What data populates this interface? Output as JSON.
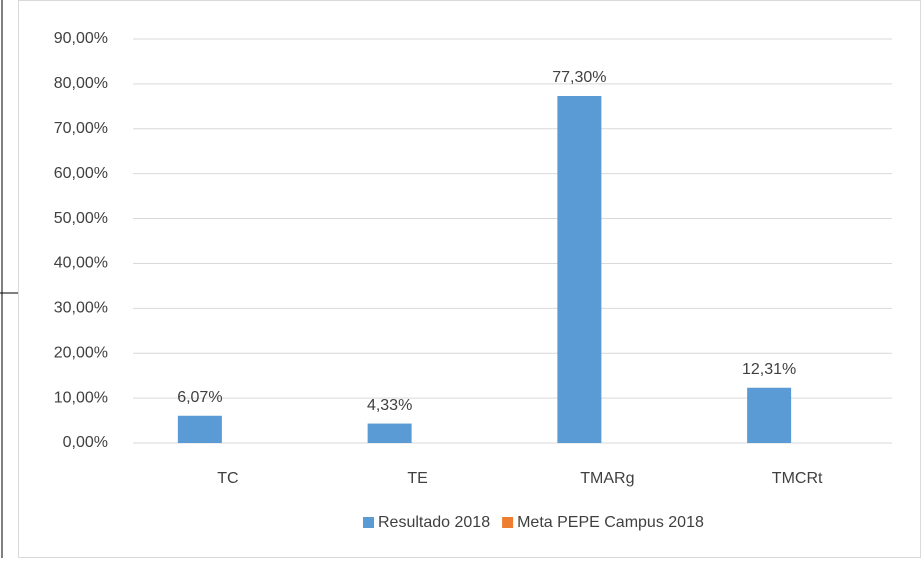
{
  "chart_data": {
    "type": "bar",
    "categories": [
      "TC",
      "TE",
      "TMARg",
      "TMCRt"
    ],
    "series": [
      {
        "name": "Resultado 2018",
        "color": "#5b9bd5",
        "values": [
          6.07,
          4.33,
          77.3,
          12.31
        ],
        "value_labels": [
          "6,07%",
          "4,33%",
          "77,30%",
          "12,31%"
        ]
      },
      {
        "name": "Meta PEPE Campus 2018",
        "color": "#ed7d31",
        "values": [
          null,
          null,
          null,
          null
        ]
      }
    ],
    "ylim": [
      0,
      90
    ],
    "yticks": [
      {
        "value": 0,
        "label": "0,00%"
      },
      {
        "value": 10,
        "label": "10,00%"
      },
      {
        "value": 20,
        "label": "20,00%"
      },
      {
        "value": 30,
        "label": "30,00%"
      },
      {
        "value": 40,
        "label": "40,00%"
      },
      {
        "value": 50,
        "label": "50,00%"
      },
      {
        "value": 60,
        "label": "60,00%"
      },
      {
        "value": 70,
        "label": "70,00%"
      },
      {
        "value": 80,
        "label": "80,00%"
      },
      {
        "value": 90,
        "label": "90,00%"
      }
    ],
    "grid": true,
    "legend": "bottom"
  }
}
